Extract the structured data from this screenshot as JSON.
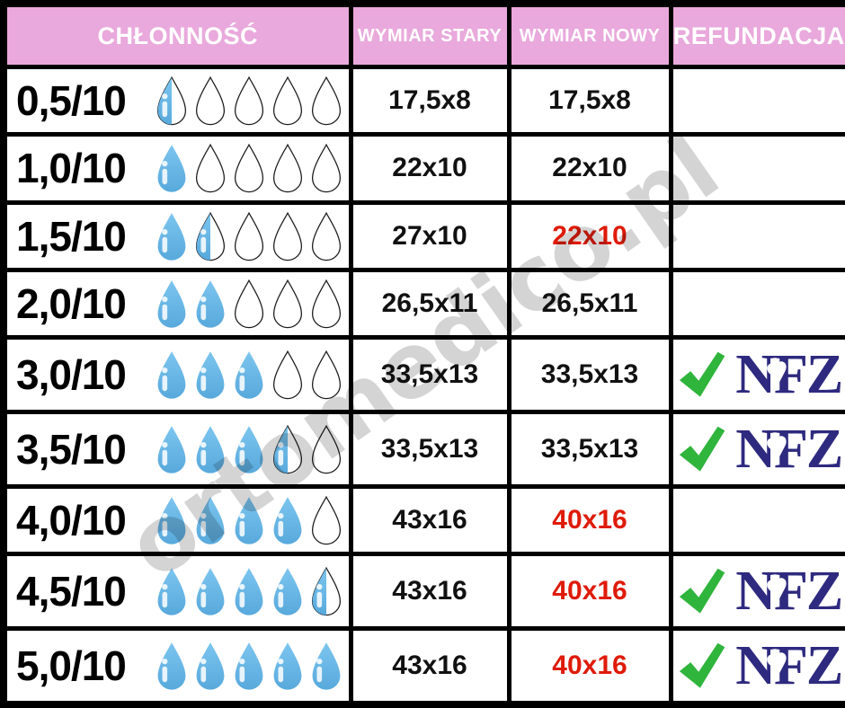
{
  "header": {
    "columns": [
      "CHŁONNOŚĆ",
      "WYMIAR STARY",
      "WYMIAR NOWY",
      "REFUNDACJA"
    ]
  },
  "watermark": {
    "text": "ortomedico.pl"
  },
  "refund": {
    "check_icon": "check-icon",
    "logo_text": "NFZ",
    "heart_icon": "♥"
  },
  "colors": {
    "header_bg": "#E9A9DC",
    "header_text": "#FFFFFF",
    "drop_blue_top": "#7CC5EF",
    "drop_blue_bottom": "#58A9DC",
    "changed_red": "#DF1B09",
    "nfz_navy": "#2E2A7F",
    "check_green": "#2FB43C",
    "border": "#000000",
    "watermark_gray": "#D4D4D4"
  },
  "rows": [
    {
      "absorbency": "0,5/10",
      "drops": [
        "half",
        "empty",
        "empty",
        "empty",
        "empty"
      ],
      "old_size": "17,5x8",
      "new_size": "17,5x8",
      "new_changed": false,
      "refunded": false
    },
    {
      "absorbency": "1,0/10",
      "drops": [
        "full",
        "empty",
        "empty",
        "empty",
        "empty"
      ],
      "old_size": "22x10",
      "new_size": "22x10",
      "new_changed": false,
      "refunded": false
    },
    {
      "absorbency": "1,5/10",
      "drops": [
        "full",
        "half",
        "empty",
        "empty",
        "empty"
      ],
      "old_size": "27x10",
      "new_size": "22x10",
      "new_changed": true,
      "refunded": false
    },
    {
      "absorbency": "2,0/10",
      "drops": [
        "full",
        "full",
        "empty",
        "empty",
        "empty"
      ],
      "old_size": "26,5x11",
      "new_size": "26,5x11",
      "new_changed": false,
      "refunded": false
    },
    {
      "absorbency": "3,0/10",
      "drops": [
        "full",
        "full",
        "full",
        "empty",
        "empty"
      ],
      "old_size": "33,5x13",
      "new_size": "33,5x13",
      "new_changed": false,
      "refunded": true
    },
    {
      "absorbency": "3,5/10",
      "drops": [
        "full",
        "full",
        "full",
        "half",
        "empty"
      ],
      "old_size": "33,5x13",
      "new_size": "33,5x13",
      "new_changed": false,
      "refunded": true
    },
    {
      "absorbency": "4,0/10",
      "drops": [
        "full",
        "full",
        "full",
        "full",
        "empty"
      ],
      "old_size": "43x16",
      "new_size": "40x16",
      "new_changed": true,
      "refunded": false
    },
    {
      "absorbency": "4,5/10",
      "drops": [
        "full",
        "full",
        "full",
        "full",
        "half"
      ],
      "old_size": "43x16",
      "new_size": "40x16",
      "new_changed": true,
      "refunded": true
    },
    {
      "absorbency": "5,0/10",
      "drops": [
        "full",
        "full",
        "full",
        "full",
        "full"
      ],
      "old_size": "43x16",
      "new_size": "40x16",
      "new_changed": true,
      "refunded": true
    }
  ],
  "chart_data": {
    "type": "table",
    "columns": [
      "CHŁONNOŚĆ",
      "WYMIAR STARY",
      "WYMIAR NOWY",
      "REFUNDACJA"
    ],
    "rows": [
      {
        "chlonnosc": "0,5/10",
        "drops_filled": 0.5,
        "drops_total": 5,
        "wymiar_stary": "17,5x8",
        "wymiar_nowy": "17,5x8",
        "nowy_changed": false,
        "refundacja_nfz": false
      },
      {
        "chlonnosc": "1,0/10",
        "drops_filled": 1.0,
        "drops_total": 5,
        "wymiar_stary": "22x10",
        "wymiar_nowy": "22x10",
        "nowy_changed": false,
        "refundacja_nfz": false
      },
      {
        "chlonnosc": "1,5/10",
        "drops_filled": 1.5,
        "drops_total": 5,
        "wymiar_stary": "27x10",
        "wymiar_nowy": "22x10",
        "nowy_changed": true,
        "refundacja_nfz": false
      },
      {
        "chlonnosc": "2,0/10",
        "drops_filled": 2.0,
        "drops_total": 5,
        "wymiar_stary": "26,5x11",
        "wymiar_nowy": "26,5x11",
        "nowy_changed": false,
        "refundacja_nfz": false
      },
      {
        "chlonnosc": "3,0/10",
        "drops_filled": 3.0,
        "drops_total": 5,
        "wymiar_stary": "33,5x13",
        "wymiar_nowy": "33,5x13",
        "nowy_changed": false,
        "refundacja_nfz": true
      },
      {
        "chlonnosc": "3,5/10",
        "drops_filled": 3.5,
        "drops_total": 5,
        "wymiar_stary": "33,5x13",
        "wymiar_nowy": "33,5x13",
        "nowy_changed": false,
        "refundacja_nfz": true
      },
      {
        "chlonnosc": "4,0/10",
        "drops_filled": 4.0,
        "drops_total": 5,
        "wymiar_stary": "43x16",
        "wymiar_nowy": "40x16",
        "nowy_changed": true,
        "refundacja_nfz": false
      },
      {
        "chlonnosc": "4,5/10",
        "drops_filled": 4.5,
        "drops_total": 5,
        "wymiar_stary": "43x16",
        "wymiar_nowy": "40x16",
        "nowy_changed": true,
        "refundacja_nfz": true
      },
      {
        "chlonnosc": "5,0/10",
        "drops_filled": 5.0,
        "drops_total": 5,
        "wymiar_stary": "43x16",
        "wymiar_nowy": "40x16",
        "nowy_changed": true,
        "refundacja_nfz": true
      }
    ]
  }
}
